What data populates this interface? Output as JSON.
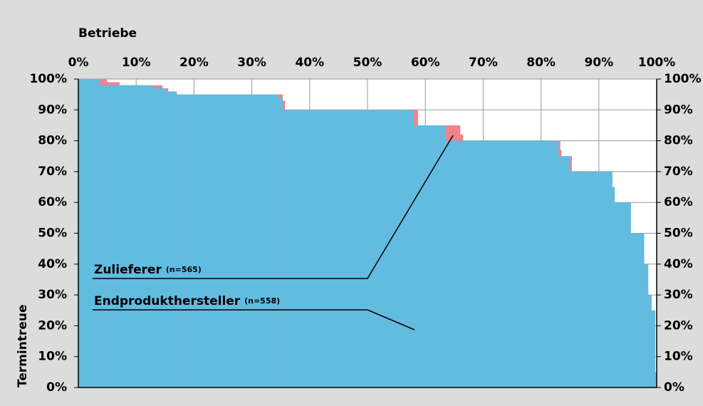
{
  "chart_data": {
    "type": "step-area",
    "xlabel": "Betriebe",
    "ylabel": "Termintreue",
    "xlim": [
      0,
      100
    ],
    "ylim": [
      0,
      100
    ],
    "y2lim": [
      0,
      100
    ],
    "xticks": [
      {
        "value": 0,
        "label": "0%"
      },
      {
        "value": 10,
        "label": "10%"
      },
      {
        "value": 20,
        "label": "20%"
      },
      {
        "value": 30,
        "label": "30%"
      },
      {
        "value": 40,
        "label": "40%"
      },
      {
        "value": 50,
        "label": "50%"
      },
      {
        "value": 60,
        "label": "60%"
      },
      {
        "value": 70,
        "label": "70%"
      },
      {
        "value": 80,
        "label": "80%"
      },
      {
        "value": 90,
        "label": "90%"
      },
      {
        "value": 100,
        "label": "100%"
      }
    ],
    "yticks": [
      {
        "value": 0,
        "label": "0%"
      },
      {
        "value": 10,
        "label": "10%"
      },
      {
        "value": 20,
        "label": "20%"
      },
      {
        "value": 30,
        "label": "30%"
      },
      {
        "value": 40,
        "label": "40%"
      },
      {
        "value": 50,
        "label": "50%"
      },
      {
        "value": 60,
        "label": "60%"
      },
      {
        "value": 70,
        "label": "70%"
      },
      {
        "value": 80,
        "label": "80%"
      },
      {
        "value": 90,
        "label": "90%"
      },
      {
        "value": 100,
        "label": "100%"
      }
    ],
    "y2ticks": [
      {
        "value": 0,
        "label": "0%"
      },
      {
        "value": 10,
        "label": "10%"
      },
      {
        "value": 20,
        "label": "20%"
      },
      {
        "value": 30,
        "label": "30%"
      },
      {
        "value": 40,
        "label": "40%"
      },
      {
        "value": 50,
        "label": "50%"
      },
      {
        "value": 60,
        "label": "60%"
      },
      {
        "value": 70,
        "label": "70%"
      },
      {
        "value": 80,
        "label": "80%"
      },
      {
        "value": 90,
        "label": "90%"
      },
      {
        "value": 100,
        "label": "100%"
      }
    ],
    "grid": true,
    "series": [
      {
        "name": "Zulieferer",
        "note": "(n=565)",
        "color": "#f0838b",
        "x": [
          0,
          4.9,
          7.1,
          14.5,
          15.5,
          16.5,
          35.3,
          35.7,
          58.7,
          66,
          66.5,
          83.3,
          83.5,
          85.3,
          92.3,
          92.7,
          95.5,
          97.8,
          98.5,
          99.1,
          99.7
        ],
        "values": [
          100,
          99,
          98,
          97,
          96,
          95,
          93,
          90,
          85,
          82,
          80,
          77,
          75,
          70,
          65,
          60,
          50,
          40,
          30,
          25,
          5
        ]
      },
      {
        "name": "Endprodukthersteller",
        "note": "(n=558)",
        "color": "#62bcdf",
        "x": [
          0,
          3.7,
          13,
          15,
          17,
          34.5,
          35.3,
          57.9,
          63.5,
          83,
          85,
          92.3,
          92.7,
          95.5,
          97.8,
          98.5,
          99.1,
          99.7
        ],
        "values": [
          100,
          98,
          97,
          96,
          95,
          94,
          90,
          85,
          80,
          75,
          70,
          65,
          60,
          50,
          40,
          30,
          25,
          5
        ]
      }
    ]
  }
}
